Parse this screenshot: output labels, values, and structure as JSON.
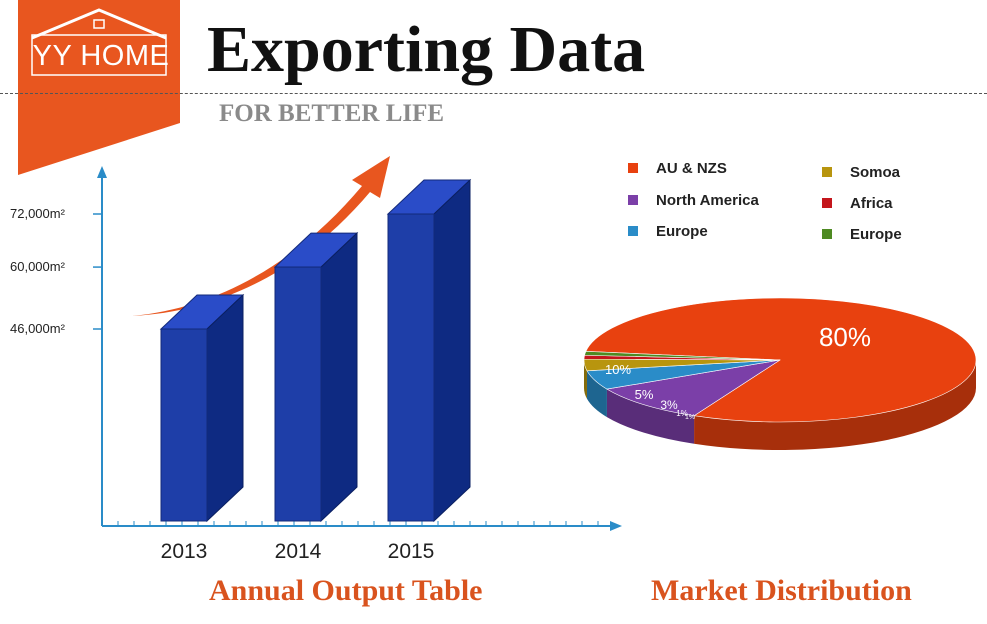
{
  "header": {
    "logo_text": "YY HOME",
    "title": "Exporting Data",
    "subtitle": "FOR BETTER LIFE",
    "brand_color": "#e8561f"
  },
  "chart_data": [
    {
      "type": "bar",
      "title": "Annual Output Table",
      "categories": [
        "2013",
        "2014",
        "2015"
      ],
      "values": [
        46000,
        60000,
        72000
      ],
      "ytick_labels": [
        "46,000m²",
        "60,000m²",
        "72,000m²"
      ],
      "ytick_values": [
        46000,
        60000,
        72000
      ],
      "bar_color": "#1e3ea8",
      "trend_arrow_color": "#e8561f",
      "grid": false
    },
    {
      "type": "pie",
      "title": "Market Distribution",
      "slices": [
        {
          "label": "AU & NZS",
          "value": 80,
          "display": "80%",
          "color": "#e8410f"
        },
        {
          "label": "North America",
          "value": 10,
          "display": "10%",
          "color": "#7b3fa8"
        },
        {
          "label": "Europe",
          "value": 5,
          "display": "5%",
          "color": "#2a8cc8"
        },
        {
          "label": "Somoa",
          "value": 3,
          "display": "3%",
          "color": "#b8950e"
        },
        {
          "label": "Africa",
          "value": 1,
          "display": "1%",
          "color": "#c4161c"
        },
        {
          "label": "Europe",
          "value": 1,
          "display": "1%",
          "color": "#4e8a22"
        }
      ],
      "legend_position": "top"
    }
  ]
}
